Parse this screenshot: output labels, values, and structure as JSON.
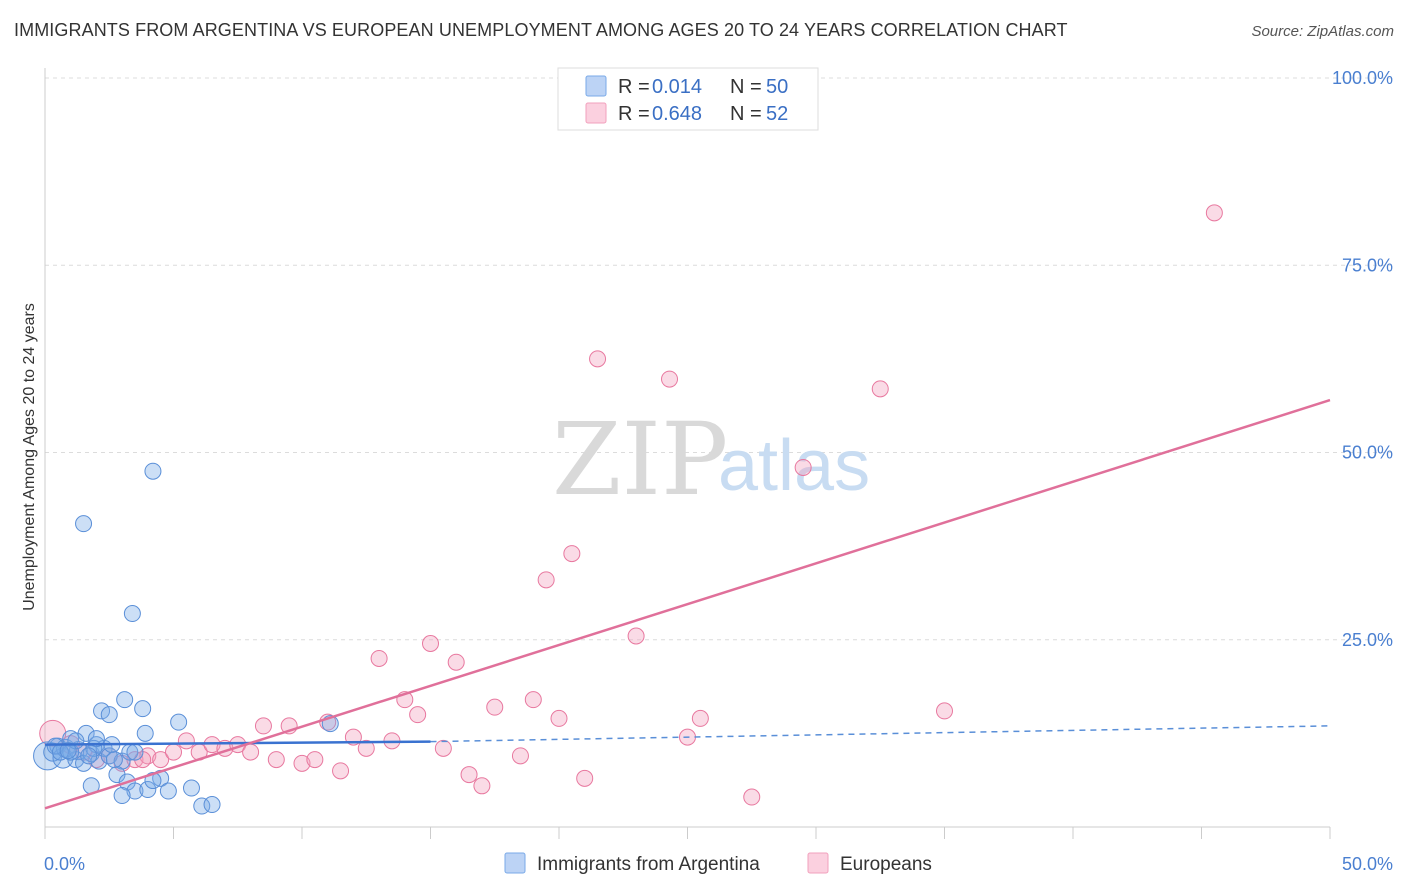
{
  "title": "IMMIGRANTS FROM ARGENTINA VS EUROPEAN UNEMPLOYMENT AMONG AGES 20 TO 24 YEARS CORRELATION CHART",
  "source": "Source: ZipAtlas.com",
  "watermark": {
    "zip": "ZIP",
    "atlas": "atlas"
  },
  "stats": [
    {
      "r_label": "R =",
      "r_value": "0.014",
      "n_label": "N =",
      "n_value": "50",
      "color": "#7aaae8"
    },
    {
      "r_label": "R =",
      "r_value": "0.648",
      "n_label": "N =",
      "n_value": "52",
      "color": "#f2a0bc"
    }
  ],
  "chart_data": {
    "type": "scatter",
    "title": "IMMIGRANTS FROM ARGENTINA VS EUROPEAN UNEMPLOYMENT AMONG AGES 20 TO 24 YEARS CORRELATION CHART",
    "xlabel": "",
    "ylabel": "Unemployment Among Ages 20 to 24 years",
    "xlim": [
      0,
      50
    ],
    "ylim": [
      0,
      100
    ],
    "x_tick_labels": [
      {
        "value": 0,
        "label": "0.0%"
      },
      {
        "value": 50,
        "label": "50.0%"
      }
    ],
    "y_tick_labels": [
      {
        "value": 25,
        "label": "25.0%"
      },
      {
        "value": 50,
        "label": "50.0%"
      },
      {
        "value": 75,
        "label": "75.0%"
      },
      {
        "value": 100,
        "label": "100.0%"
      }
    ],
    "grid": true,
    "legend_position": "bottom",
    "series": [
      {
        "name": "Immigrants from Argentina",
        "color": "#7aaae8",
        "stroke": "#5a8fd8",
        "trend": {
          "x_solid": [
            0,
            15
          ],
          "y_solid": [
            11.0,
            11.4
          ],
          "x_dashed": [
            15,
            50
          ],
          "y_dashed": [
            11.4,
            13.5
          ]
        },
        "points": [
          [
            0.1,
            9.5,
            14
          ],
          [
            0.3,
            10.0,
            9
          ],
          [
            0.5,
            10.8,
            8
          ],
          [
            0.7,
            9.2,
            10
          ],
          [
            0.8,
            10.5,
            9
          ],
          [
            1.0,
            11.8,
            8
          ],
          [
            1.2,
            9.0,
            8
          ],
          [
            1.3,
            10.2,
            9
          ],
          [
            1.5,
            8.5,
            8
          ],
          [
            1.6,
            12.5,
            8
          ],
          [
            1.8,
            9.8,
            8
          ],
          [
            2.0,
            11.0,
            8
          ],
          [
            2.1,
            8.8,
            8
          ],
          [
            2.3,
            10.5,
            8
          ],
          [
            2.5,
            9.5,
            8
          ],
          [
            1.5,
            40.5,
            8
          ],
          [
            4.2,
            47.5,
            8
          ],
          [
            3.4,
            28.5,
            8
          ],
          [
            3.1,
            17.0,
            8
          ],
          [
            2.2,
            15.5,
            8
          ],
          [
            2.5,
            15.0,
            8
          ],
          [
            3.8,
            15.8,
            8
          ],
          [
            3.9,
            12.5,
            8
          ],
          [
            5.2,
            14.0,
            8
          ],
          [
            2.6,
            11.0,
            8
          ],
          [
            3.0,
            8.8,
            8
          ],
          [
            3.3,
            10.0,
            8
          ],
          [
            1.8,
            5.5,
            8
          ],
          [
            2.8,
            7.0,
            8
          ],
          [
            3.2,
            6.0,
            8
          ],
          [
            3.5,
            4.8,
            8
          ],
          [
            4.0,
            5.0,
            8
          ],
          [
            4.5,
            6.5,
            8
          ],
          [
            4.8,
            4.8,
            8
          ],
          [
            5.7,
            5.2,
            8
          ],
          [
            6.1,
            2.8,
            8
          ],
          [
            6.5,
            3.0,
            8
          ],
          [
            3.0,
            4.2,
            8
          ],
          [
            11.1,
            13.8,
            8
          ],
          [
            1.0,
            10.0,
            8
          ],
          [
            0.4,
            10.8,
            8
          ],
          [
            0.6,
            10.0,
            8
          ],
          [
            1.9,
            10.5,
            8
          ],
          [
            2.7,
            9.0,
            8
          ],
          [
            3.5,
            10.0,
            8
          ],
          [
            1.2,
            11.5,
            8
          ],
          [
            0.9,
            10.2,
            8
          ],
          [
            2.0,
            11.8,
            8
          ],
          [
            4.2,
            6.2,
            8
          ],
          [
            1.7,
            9.5,
            8
          ]
        ]
      },
      {
        "name": "Europeans",
        "color": "#f2a0bc",
        "stroke": "#e8789f",
        "trend": {
          "x_solid": [
            0,
            50
          ],
          "y_solid": [
            2.5,
            57.0
          ]
        },
        "points": [
          [
            0.3,
            12.5,
            13
          ],
          [
            1.0,
            11.0,
            9
          ],
          [
            1.5,
            10.0,
            8
          ],
          [
            2.0,
            9.0,
            8
          ],
          [
            2.5,
            9.5,
            8
          ],
          [
            3.0,
            8.5,
            8
          ],
          [
            3.5,
            9.0,
            8
          ],
          [
            4.0,
            9.5,
            8
          ],
          [
            4.5,
            9.0,
            8
          ],
          [
            5.0,
            10.0,
            8
          ],
          [
            5.5,
            11.5,
            8
          ],
          [
            6.0,
            10.0,
            8
          ],
          [
            6.5,
            11.0,
            8
          ],
          [
            7.0,
            10.5,
            8
          ],
          [
            7.5,
            11.0,
            8
          ],
          [
            8.0,
            10.0,
            8
          ],
          [
            8.5,
            13.5,
            8
          ],
          [
            9.0,
            9.0,
            8
          ],
          [
            9.5,
            13.5,
            8
          ],
          [
            10.0,
            8.5,
            8
          ],
          [
            10.5,
            9.0,
            8
          ],
          [
            11.0,
            14.0,
            8
          ],
          [
            11.5,
            7.5,
            8
          ],
          [
            12.0,
            12.0,
            8
          ],
          [
            12.5,
            10.5,
            8
          ],
          [
            13.0,
            22.5,
            8
          ],
          [
            13.5,
            11.5,
            8
          ],
          [
            14.0,
            17.0,
            8
          ],
          [
            14.5,
            15.0,
            8
          ],
          [
            15.0,
            24.5,
            8
          ],
          [
            15.5,
            10.5,
            8
          ],
          [
            16.0,
            22.0,
            8
          ],
          [
            16.5,
            7.0,
            8
          ],
          [
            17.0,
            5.5,
            8
          ],
          [
            17.5,
            16.0,
            8
          ],
          [
            18.5,
            9.5,
            8
          ],
          [
            19.0,
            17.0,
            8
          ],
          [
            19.5,
            33.0,
            8
          ],
          [
            20.0,
            14.5,
            8
          ],
          [
            20.5,
            36.5,
            8
          ],
          [
            21.0,
            6.5,
            8
          ],
          [
            21.5,
            62.5,
            8
          ],
          [
            23.0,
            25.5,
            8
          ],
          [
            24.3,
            59.8,
            8
          ],
          [
            25.0,
            12.0,
            8
          ],
          [
            25.5,
            14.5,
            8
          ],
          [
            27.5,
            4.0,
            8
          ],
          [
            29.5,
            48.0,
            8
          ],
          [
            32.5,
            58.5,
            8
          ],
          [
            35.0,
            15.5,
            8
          ],
          [
            45.5,
            82.0,
            8
          ],
          [
            3.8,
            9.0,
            8
          ]
        ]
      }
    ]
  }
}
